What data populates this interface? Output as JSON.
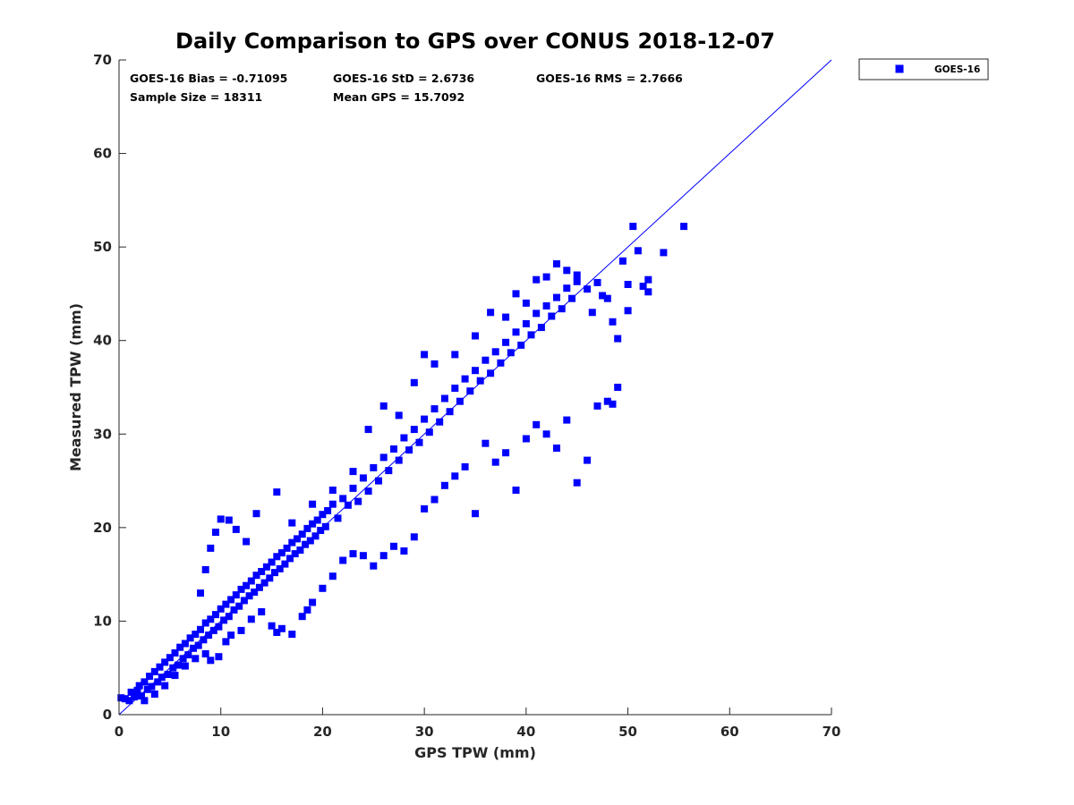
{
  "colors": {
    "series": "#0000ff",
    "axis": "#262626",
    "line": "#0000ff"
  },
  "stats": [
    {
      "label": "GOES-16 Bias = -0.71095"
    },
    {
      "label": "GOES-16 StD = 2.6736"
    },
    {
      "label": "GOES-16 RMS = 2.7666"
    },
    {
      "label": "Sample Size = 18311"
    },
    {
      "label": "Mean GPS = 15.7092"
    }
  ],
  "chart_data": {
    "type": "scatter",
    "title": "Daily Comparison to GPS over CONUS 2018-12-07",
    "xlabel": "GPS TPW (mm)",
    "ylabel": "Measured TPW (mm)",
    "xlim": [
      0,
      70
    ],
    "ylim": [
      0,
      70
    ],
    "xticks": [
      "0",
      "10",
      "20",
      "30",
      "40",
      "50",
      "60",
      "70"
    ],
    "yticks": [
      "0",
      "10",
      "20",
      "30",
      "40",
      "50",
      "60",
      "70"
    ],
    "grid": false,
    "legend": {
      "position": "outside-top-right",
      "entries": [
        "GOES-16"
      ]
    },
    "reference_line": {
      "from": [
        0,
        0
      ],
      "to": [
        70,
        70
      ]
    },
    "series": [
      {
        "name": "GOES-16",
        "marker": "square",
        "points": [
          [
            0.2,
            1.8
          ],
          [
            0.6,
            1.7
          ],
          [
            1.0,
            1.5
          ],
          [
            1.2,
            2.4
          ],
          [
            1.5,
            1.9
          ],
          [
            1.8,
            2.6
          ],
          [
            2.0,
            3.1
          ],
          [
            2.2,
            2.0
          ],
          [
            2.5,
            3.5
          ],
          [
            2.8,
            2.7
          ],
          [
            3.0,
            4.1
          ],
          [
            3.2,
            3.0
          ],
          [
            3.5,
            4.6
          ],
          [
            3.8,
            3.5
          ],
          [
            4.0,
            5.1
          ],
          [
            4.2,
            4.0
          ],
          [
            4.5,
            5.6
          ],
          [
            4.8,
            4.3
          ],
          [
            5.0,
            6.1
          ],
          [
            5.3,
            5.0
          ],
          [
            5.5,
            6.6
          ],
          [
            5.8,
            5.3
          ],
          [
            6.0,
            7.2
          ],
          [
            6.3,
            6.0
          ],
          [
            6.5,
            7.6
          ],
          [
            6.8,
            6.4
          ],
          [
            7.0,
            8.2
          ],
          [
            7.3,
            7.1
          ],
          [
            7.5,
            8.6
          ],
          [
            7.8,
            7.4
          ],
          [
            8.0,
            9.1
          ],
          [
            8.3,
            8.0
          ],
          [
            8.5,
            9.8
          ],
          [
            8.8,
            8.5
          ],
          [
            9.0,
            10.2
          ],
          [
            9.3,
            9.0
          ],
          [
            9.5,
            10.7
          ],
          [
            9.8,
            9.4
          ],
          [
            10.0,
            11.3
          ],
          [
            10.3,
            10.1
          ],
          [
            10.5,
            11.8
          ],
          [
            10.8,
            10.5
          ],
          [
            11.0,
            12.3
          ],
          [
            11.3,
            11.2
          ],
          [
            11.5,
            12.8
          ],
          [
            11.8,
            11.6
          ],
          [
            12.0,
            13.4
          ],
          [
            12.3,
            12.2
          ],
          [
            12.5,
            13.8
          ],
          [
            12.8,
            12.7
          ],
          [
            13.0,
            14.3
          ],
          [
            13.3,
            13.1
          ],
          [
            13.5,
            14.9
          ],
          [
            13.8,
            13.6
          ],
          [
            14.0,
            15.3
          ],
          [
            14.3,
            14.1
          ],
          [
            14.5,
            15.8
          ],
          [
            14.8,
            14.6
          ],
          [
            15.0,
            16.3
          ],
          [
            15.3,
            15.2
          ],
          [
            15.5,
            16.9
          ],
          [
            15.8,
            15.6
          ],
          [
            16.0,
            17.3
          ],
          [
            16.3,
            16.1
          ],
          [
            16.5,
            17.8
          ],
          [
            16.8,
            16.7
          ],
          [
            17.0,
            18.4
          ],
          [
            17.3,
            17.2
          ],
          [
            17.5,
            18.8
          ],
          [
            17.8,
            17.6
          ],
          [
            18.0,
            19.3
          ],
          [
            18.3,
            18.2
          ],
          [
            18.5,
            19.9
          ],
          [
            18.8,
            18.6
          ],
          [
            19.0,
            20.4
          ],
          [
            19.3,
            19.1
          ],
          [
            19.5,
            20.8
          ],
          [
            19.8,
            19.7
          ],
          [
            20.0,
            21.4
          ],
          [
            20.3,
            20.1
          ],
          [
            20.5,
            21.8
          ],
          [
            21.0,
            22.5
          ],
          [
            21.5,
            21.0
          ],
          [
            22.0,
            23.1
          ],
          [
            22.5,
            22.4
          ],
          [
            23.0,
            24.2
          ],
          [
            23.5,
            22.8
          ],
          [
            24.0,
            25.3
          ],
          [
            24.5,
            23.9
          ],
          [
            25.0,
            26.4
          ],
          [
            25.5,
            25.0
          ],
          [
            26.0,
            27.5
          ],
          [
            26.5,
            26.1
          ],
          [
            27.0,
            28.4
          ],
          [
            27.5,
            27.2
          ],
          [
            28.0,
            29.6
          ],
          [
            28.5,
            28.3
          ],
          [
            29.0,
            30.5
          ],
          [
            29.5,
            29.1
          ],
          [
            30.0,
            31.6
          ],
          [
            30.5,
            30.2
          ],
          [
            31.0,
            32.7
          ],
          [
            31.5,
            31.3
          ],
          [
            32.0,
            33.8
          ],
          [
            32.5,
            32.4
          ],
          [
            33.0,
            34.9
          ],
          [
            33.5,
            33.5
          ],
          [
            34.0,
            35.9
          ],
          [
            34.5,
            34.6
          ],
          [
            35.0,
            36.8
          ],
          [
            35.5,
            35.7
          ],
          [
            36.0,
            37.9
          ],
          [
            36.5,
            36.5
          ],
          [
            37.0,
            38.8
          ],
          [
            37.5,
            37.6
          ],
          [
            38.0,
            39.8
          ],
          [
            38.5,
            38.7
          ],
          [
            39.0,
            40.9
          ],
          [
            39.5,
            39.5
          ],
          [
            40.0,
            41.8
          ],
          [
            40.5,
            40.6
          ],
          [
            41.0,
            42.9
          ],
          [
            41.5,
            41.4
          ],
          [
            42.0,
            43.7
          ],
          [
            42.5,
            42.6
          ],
          [
            43.0,
            44.6
          ],
          [
            43.5,
            43.4
          ],
          [
            44.0,
            45.6
          ],
          [
            44.5,
            44.5
          ],
          [
            45.0,
            46.3
          ],
          [
            2.5,
            1.5
          ],
          [
            3.5,
            2.2
          ],
          [
            4.5,
            3.1
          ],
          [
            5.5,
            4.2
          ],
          [
            6.5,
            5.2
          ],
          [
            7.5,
            6.0
          ],
          [
            8.5,
            6.5
          ],
          [
            9.0,
            5.8
          ],
          [
            9.8,
            6.2
          ],
          [
            10.5,
            7.8
          ],
          [
            11.0,
            8.5
          ],
          [
            12.0,
            9.0
          ],
          [
            13.0,
            10.2
          ],
          [
            14.0,
            11.0
          ],
          [
            15.0,
            9.5
          ],
          [
            15.5,
            8.8
          ],
          [
            16.0,
            9.2
          ],
          [
            17.0,
            8.6
          ],
          [
            18.0,
            10.5
          ],
          [
            18.5,
            11.2
          ],
          [
            19.0,
            12.0
          ],
          [
            20.0,
            13.5
          ],
          [
            21.0,
            14.8
          ],
          [
            22.0,
            16.5
          ],
          [
            23.0,
            17.2
          ],
          [
            24.0,
            17.0
          ],
          [
            25.0,
            15.9
          ],
          [
            26.0,
            17.0
          ],
          [
            27.0,
            18.0
          ],
          [
            28.0,
            17.5
          ],
          [
            29.0,
            19.0
          ],
          [
            30.0,
            22.0
          ],
          [
            31.0,
            23.0
          ],
          [
            32.0,
            24.5
          ],
          [
            33.0,
            25.5
          ],
          [
            34.0,
            26.5
          ],
          [
            35.0,
            21.5
          ],
          [
            36.0,
            29.0
          ],
          [
            37.0,
            27.0
          ],
          [
            38.0,
            28.0
          ],
          [
            39.0,
            24.0
          ],
          [
            40.0,
            29.5
          ],
          [
            41.0,
            31.0
          ],
          [
            42.0,
            30.0
          ],
          [
            43.0,
            28.5
          ],
          [
            44.0,
            31.5
          ],
          [
            45.0,
            24.8
          ],
          [
            46.0,
            27.2
          ],
          [
            47.0,
            33.0
          ],
          [
            48.0,
            33.5
          ],
          [
            8.0,
            13.0
          ],
          [
            8.5,
            15.5
          ],
          [
            9.0,
            17.8
          ],
          [
            9.5,
            19.5
          ],
          [
            10.0,
            20.9
          ],
          [
            10.8,
            20.8
          ],
          [
            11.5,
            19.8
          ],
          [
            12.5,
            18.5
          ],
          [
            13.5,
            21.5
          ],
          [
            15.5,
            23.8
          ],
          [
            17.0,
            20.5
          ],
          [
            19.0,
            22.5
          ],
          [
            21.0,
            24.0
          ],
          [
            23.0,
            26.0
          ],
          [
            24.5,
            30.5
          ],
          [
            26.0,
            33.0
          ],
          [
            27.5,
            32.0
          ],
          [
            29.0,
            35.5
          ],
          [
            30.0,
            38.5
          ],
          [
            31.0,
            37.5
          ],
          [
            33.0,
            38.5
          ],
          [
            35.0,
            40.5
          ],
          [
            36.5,
            43.0
          ],
          [
            38.0,
            42.5
          ],
          [
            39.0,
            45.0
          ],
          [
            40.0,
            44.0
          ],
          [
            41.0,
            46.5
          ],
          [
            42.0,
            46.8
          ],
          [
            43.0,
            48.2
          ],
          [
            44.0,
            47.5
          ],
          [
            45.0,
            47.0
          ],
          [
            46.0,
            45.5
          ],
          [
            47.0,
            46.2
          ],
          [
            48.0,
            44.5
          ],
          [
            49.0,
            40.2
          ],
          [
            50.0,
            43.2
          ],
          [
            50.5,
            52.2
          ],
          [
            51.0,
            49.6
          ],
          [
            52.0,
            45.2
          ],
          [
            53.5,
            49.4
          ],
          [
            55.5,
            52.2
          ],
          [
            46.5,
            43.0
          ],
          [
            47.5,
            44.8
          ],
          [
            49.5,
            48.5
          ],
          [
            50.0,
            46.0
          ],
          [
            51.5,
            45.8
          ],
          [
            52.0,
            46.5
          ],
          [
            48.5,
            42.0
          ],
          [
            49.0,
            35.0
          ],
          [
            48.5,
            33.2
          ]
        ]
      }
    ]
  }
}
